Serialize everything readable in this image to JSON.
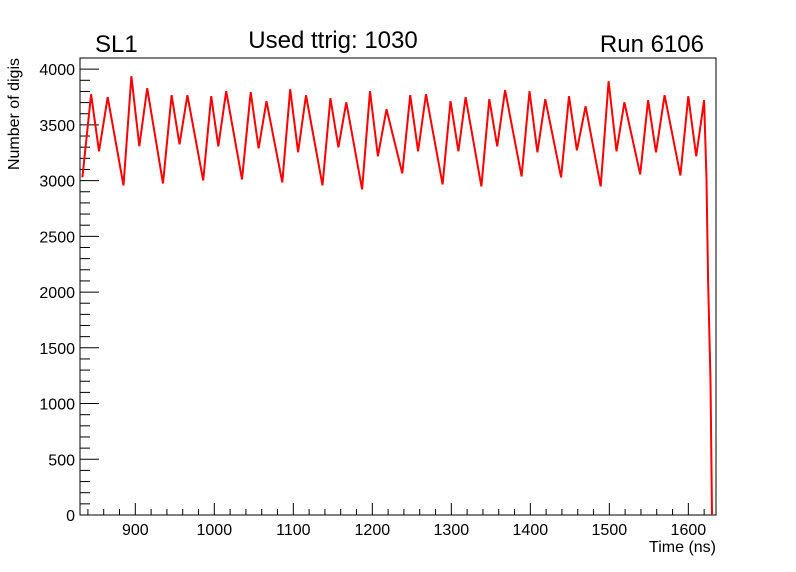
{
  "chart_data": {
    "type": "line",
    "title": "Used ttrig: 1030",
    "label_left": "SL1",
    "label_right": "Run 6106",
    "xlabel": "Time (ns)",
    "ylabel": "Number of digis",
    "xlim": [
      830,
      1635
    ],
    "ylim": [
      0,
      4100
    ],
    "xticks": [
      900,
      1000,
      1100,
      1200,
      1300,
      1400,
      1500,
      1600
    ],
    "yticks": [
      0,
      500,
      1000,
      1500,
      2000,
      2500,
      3000,
      3500,
      4000
    ],
    "grid": false,
    "line_color": "#ff0000",
    "series": [
      {
        "name": "digis",
        "x": [
          833,
          844,
          854,
          865,
          885,
          895,
          905,
          915,
          935,
          946,
          956,
          966,
          986,
          996,
          1005,
          1015,
          1035,
          1046,
          1056,
          1066,
          1086,
          1096,
          1106,
          1116,
          1137,
          1147,
          1157,
          1167,
          1187,
          1197,
          1207,
          1218,
          1238,
          1248,
          1258,
          1268,
          1289,
          1299,
          1309,
          1318,
          1338,
          1348,
          1358,
          1368,
          1389,
          1399,
          1409,
          1419,
          1439,
          1449,
          1459,
          1470,
          1489,
          1499,
          1509,
          1519,
          1539,
          1549,
          1559,
          1570,
          1590,
          1600,
          1610,
          1620,
          1623,
          1625,
          1628,
          1630
        ],
        "y": [
          3030,
          3775,
          3263,
          3748,
          2957,
          3937,
          3308,
          3829,
          2975,
          3766,
          3326,
          3766,
          3002,
          3757,
          3308,
          3802,
          3011,
          3793,
          3290,
          3712,
          2984,
          3820,
          3254,
          3766,
          2957,
          3739,
          3299,
          3703,
          2921,
          3802,
          3218,
          3640,
          3065,
          3766,
          3263,
          3775,
          2966,
          3712,
          3263,
          3748,
          2948,
          3730,
          3308,
          3811,
          3038,
          3802,
          3254,
          3730,
          3029,
          3757,
          3272,
          3667,
          2948,
          3892,
          3263,
          3703,
          3056,
          3721,
          3254,
          3766,
          3047,
          3757,
          3218,
          3721,
          3010,
          2100,
          1200,
          0
        ]
      }
    ]
  }
}
